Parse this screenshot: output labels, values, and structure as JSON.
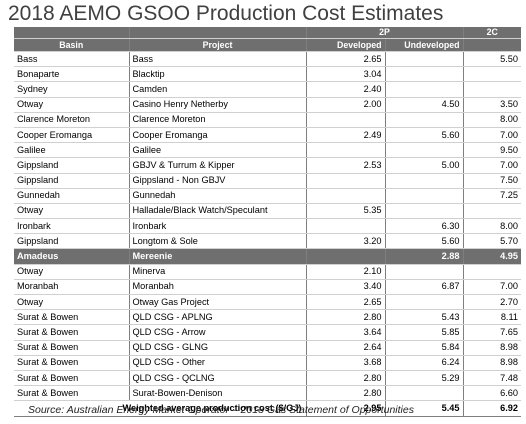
{
  "title": "2018 AEMO GSOO Production Cost Estimates",
  "header": {
    "group_2p": "2P",
    "group_2c": "2C",
    "basin": "Basin",
    "project": "Project",
    "developed": "Developed",
    "undeveloped": "Undeveloped"
  },
  "rows": [
    {
      "basin": "Bass",
      "project": "Bass",
      "developed": "2.65",
      "undeveloped": "",
      "c2": "5.50"
    },
    {
      "basin": "Bonaparte",
      "project": "Blacktip",
      "developed": "3.04",
      "undeveloped": "",
      "c2": ""
    },
    {
      "basin": "Sydney",
      "project": "Camden",
      "developed": "2.40",
      "undeveloped": "",
      "c2": ""
    },
    {
      "basin": "Otway",
      "project": "Casino Henry Netherby",
      "developed": "2.00",
      "undeveloped": "4.50",
      "c2": "3.50"
    },
    {
      "basin": "Clarence Moreton",
      "project": "Clarence Moreton",
      "developed": "",
      "undeveloped": "",
      "c2": "8.00"
    },
    {
      "basin": "Cooper Eromanga",
      "project": "Cooper Eromanga",
      "developed": "2.49",
      "undeveloped": "5.60",
      "c2": "7.00"
    },
    {
      "basin": "Galilee",
      "project": "Galilee",
      "developed": "",
      "undeveloped": "",
      "c2": "9.50"
    },
    {
      "basin": "Gippsland",
      "project": "GBJV & Turrum & Kipper",
      "developed": "2.53",
      "undeveloped": "5.00",
      "c2": "7.00"
    },
    {
      "basin": "Gippsland",
      "project": "Gippsland - Non GBJV",
      "developed": "",
      "undeveloped": "",
      "c2": "7.50"
    },
    {
      "basin": "Gunnedah",
      "project": "Gunnedah",
      "developed": "",
      "undeveloped": "",
      "c2": "7.25"
    },
    {
      "basin": "Otway",
      "project": "Halladale/Black Watch/Speculant",
      "developed": "5.35",
      "undeveloped": "",
      "c2": ""
    },
    {
      "basin": "Ironbark",
      "project": "Ironbark",
      "developed": "",
      "undeveloped": "6.30",
      "c2": "8.00"
    },
    {
      "basin": "Gippsland",
      "project": "Longtom & Sole",
      "developed": "3.20",
      "undeveloped": "5.60",
      "c2": "5.70"
    },
    {
      "basin": "Amadeus",
      "project": "Mereenie",
      "developed": "",
      "undeveloped": "2.88",
      "c2": "4.95",
      "highlight": true
    },
    {
      "basin": "Otway",
      "project": "Minerva",
      "developed": "2.10",
      "undeveloped": "",
      "c2": ""
    },
    {
      "basin": "Moranbah",
      "project": "Moranbah",
      "developed": "3.40",
      "undeveloped": "6.87",
      "c2": "7.00"
    },
    {
      "basin": "Otway",
      "project": "Otway Gas Project",
      "developed": "2.65",
      "undeveloped": "",
      "c2": "2.70"
    },
    {
      "basin": "Surat & Bowen",
      "project": "QLD CSG - APLNG",
      "developed": "2.80",
      "undeveloped": "5.43",
      "c2": "8.11"
    },
    {
      "basin": "Surat & Bowen",
      "project": "QLD CSG - Arrow",
      "developed": "3.64",
      "undeveloped": "5.85",
      "c2": "7.65"
    },
    {
      "basin": "Surat & Bowen",
      "project": "QLD CSG - GLNG",
      "developed": "2.64",
      "undeveloped": "5.84",
      "c2": "8.98"
    },
    {
      "basin": "Surat & Bowen",
      "project": "QLD CSG - Other",
      "developed": "3.68",
      "undeveloped": "6.24",
      "c2": "8.98"
    },
    {
      "basin": "Surat & Bowen",
      "project": "QLD CSG - QCLNG",
      "developed": "2.80",
      "undeveloped": "5.29",
      "c2": "7.48"
    },
    {
      "basin": "Surat & Bowen",
      "project": "Surat-Bowen-Denison",
      "developed": "2.80",
      "undeveloped": "",
      "c2": "6.60"
    }
  ],
  "total": {
    "label": "Weighted average production cost ($/GJ)",
    "developed": "2.95",
    "undeveloped": "5.45",
    "c2": "6.92"
  },
  "source": "Source: Australian Energy Market Operator – 2018 Gas Statement of Opportunities"
}
